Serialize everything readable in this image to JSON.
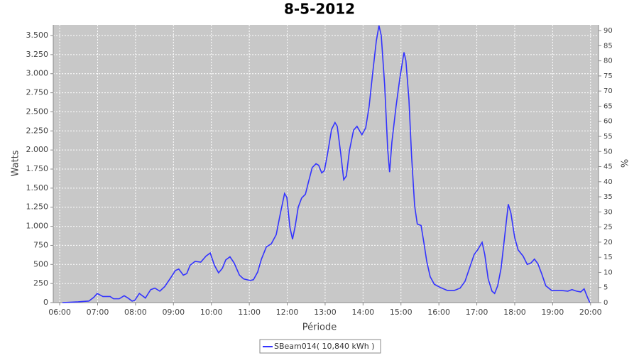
{
  "chart_data": {
    "type": "line",
    "title": "8-5-2012",
    "x_label": "Période",
    "y_label": "Watts",
    "y2_label": "%",
    "xlim": [
      5.83,
      20.21
    ],
    "xticks": [
      {
        "value": 6,
        "label": "06:00"
      },
      {
        "value": 7,
        "label": "07:00"
      },
      {
        "value": 8,
        "label": "08:00"
      },
      {
        "value": 9,
        "label": "09:00"
      },
      {
        "value": 10,
        "label": "10:00"
      },
      {
        "value": 11,
        "label": "11:00"
      },
      {
        "value": 12,
        "label": "12:00"
      },
      {
        "value": 13,
        "label": "13:00"
      },
      {
        "value": 14,
        "label": "14:00"
      },
      {
        "value": 15,
        "label": "15:00"
      },
      {
        "value": 16,
        "label": "16:00"
      },
      {
        "value": 17,
        "label": "17:00"
      },
      {
        "value": 18,
        "label": "18:00"
      },
      {
        "value": 19,
        "label": "19:00"
      },
      {
        "value": 20,
        "label": "20:00"
      }
    ],
    "ylim": [
      0,
      3640
    ],
    "yticks": [
      0,
      250,
      500,
      750,
      {
        "value": 1000,
        "label": "1.000"
      },
      {
        "value": 1250,
        "label": "1.250"
      },
      {
        "value": 1500,
        "label": "1.500"
      },
      {
        "value": 1750,
        "label": "1.750"
      },
      {
        "value": 2000,
        "label": "2.000"
      },
      {
        "value": 2250,
        "label": "2.250"
      },
      {
        "value": 2500,
        "label": "2.500"
      },
      {
        "value": 2750,
        "label": "2.750"
      },
      {
        "value": 3000,
        "label": "3.000"
      },
      {
        "value": 3250,
        "label": "3.250"
      },
      {
        "value": 3500,
        "label": "3.500"
      }
    ],
    "y2lim": [
      0,
      91.9
    ],
    "y2ticks": [
      0,
      5,
      10,
      15,
      20,
      25,
      30,
      35,
      40,
      45,
      50,
      55,
      60,
      65,
      70,
      75,
      80,
      85,
      90
    ],
    "grid": true,
    "legend": "bottom",
    "x": [
      6.07,
      6.49,
      6.77,
      6.9,
      6.99,
      7.14,
      7.33,
      7.42,
      7.57,
      7.7,
      7.8,
      7.91,
      7.98,
      8.1,
      8.26,
      8.4,
      8.51,
      8.64,
      8.77,
      8.92,
      9.05,
      9.14,
      9.26,
      9.35,
      9.44,
      9.57,
      9.72,
      9.86,
      9.97,
      10.08,
      10.19,
      10.29,
      10.38,
      10.49,
      10.6,
      10.74,
      10.85,
      11.02,
      11.11,
      11.22,
      11.32,
      11.45,
      11.58,
      11.71,
      11.82,
      11.93,
      11.99,
      12.07,
      12.14,
      12.21,
      12.29,
      12.38,
      12.48,
      12.55,
      12.66,
      12.76,
      12.83,
      12.91,
      12.98,
      13.06,
      13.17,
      13.26,
      13.32,
      13.41,
      13.49,
      13.56,
      13.64,
      13.75,
      13.84,
      13.97,
      14.07,
      14.16,
      14.25,
      14.35,
      14.42,
      14.48,
      14.57,
      14.65,
      14.7,
      14.76,
      14.87,
      14.97,
      15.08,
      15.13,
      15.21,
      15.28,
      15.36,
      15.43,
      15.53,
      15.6,
      15.68,
      15.77,
      15.88,
      16.03,
      16.22,
      16.41,
      16.56,
      16.69,
      16.82,
      16.93,
      17.02,
      17.14,
      17.21,
      17.3,
      17.4,
      17.47,
      17.55,
      17.64,
      17.74,
      17.83,
      17.9,
      18.0,
      18.09,
      18.22,
      18.33,
      18.43,
      18.52,
      18.61,
      18.71,
      18.82,
      18.97,
      19.21,
      19.4,
      19.51,
      19.63,
      19.74,
      19.83,
      19.91,
      19.98
    ],
    "series": [
      {
        "name": "SBeam014( 10,840 kWh )",
        "color": "#3333ff",
        "values": [
          0,
          10,
          20,
          70,
          120,
          80,
          80,
          50,
          50,
          90,
          60,
          20,
          30,
          120,
          60,
          170,
          190,
          150,
          210,
          320,
          420,
          440,
          360,
          380,
          490,
          540,
          530,
          610,
          650,
          490,
          390,
          450,
          560,
          600,
          520,
          360,
          310,
          290,
          300,
          400,
          570,
          730,
          770,
          890,
          1170,
          1430,
          1380,
          990,
          830,
          1000,
          1250,
          1370,
          1420,
          1560,
          1770,
          1820,
          1800,
          1700,
          1730,
          1940,
          2270,
          2360,
          2310,
          1960,
          1610,
          1660,
          1990,
          2260,
          2310,
          2200,
          2290,
          2570,
          2990,
          3430,
          3630,
          3500,
          2850,
          2010,
          1710,
          2100,
          2570,
          2940,
          3280,
          3170,
          2660,
          1920,
          1270,
          1030,
          1010,
          800,
          540,
          340,
          240,
          200,
          160,
          160,
          190,
          280,
          470,
          630,
          690,
          790,
          630,
          310,
          150,
          120,
          220,
          450,
          890,
          1290,
          1170,
          850,
          690,
          610,
          500,
          520,
          570,
          510,
          380,
          220,
          160,
          160,
          150,
          170,
          150,
          140,
          180,
          80,
          0
        ]
      }
    ]
  }
}
